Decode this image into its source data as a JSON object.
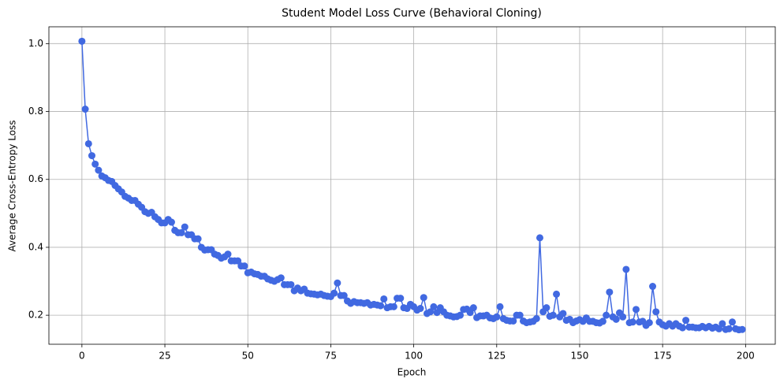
{
  "chart_data": {
    "type": "line",
    "title": "Student Model Loss Curve (Behavioral Cloning)",
    "xlabel": "Epoch",
    "ylabel": "Average Cross-Entropy Loss",
    "x": [
      0,
      1,
      2,
      3,
      4,
      5,
      6,
      7,
      8,
      9,
      10,
      11,
      12,
      13,
      14,
      15,
      16,
      17,
      18,
      19,
      20,
      21,
      22,
      23,
      24,
      25,
      26,
      27,
      28,
      29,
      30,
      31,
      32,
      33,
      34,
      35,
      36,
      37,
      38,
      39,
      40,
      41,
      42,
      43,
      44,
      45,
      46,
      47,
      48,
      49,
      50,
      51,
      52,
      53,
      54,
      55,
      56,
      57,
      58,
      59,
      60,
      61,
      62,
      63,
      64,
      65,
      66,
      67,
      68,
      69,
      70,
      71,
      72,
      73,
      74,
      75,
      76,
      77,
      78,
      79,
      80,
      81,
      82,
      83,
      84,
      85,
      86,
      87,
      88,
      89,
      90,
      91,
      92,
      93,
      94,
      95,
      96,
      97,
      98,
      99,
      100,
      101,
      102,
      103,
      104,
      105,
      106,
      107,
      108,
      109,
      110,
      111,
      112,
      113,
      114,
      115,
      116,
      117,
      118,
      119,
      120,
      121,
      122,
      123,
      124,
      125,
      126,
      127,
      128,
      129,
      130,
      131,
      132,
      133,
      134,
      135,
      136,
      137,
      138,
      139,
      140,
      141,
      142,
      143,
      144,
      145,
      146,
      147,
      148,
      149,
      150,
      151,
      152,
      153,
      154,
      155,
      156,
      157,
      158,
      159,
      160,
      161,
      162,
      163,
      164,
      165,
      166,
      167,
      168,
      169,
      170,
      171,
      172,
      173,
      174,
      175,
      176,
      177,
      178,
      179,
      180,
      181,
      182,
      183,
      184,
      185,
      186,
      187,
      188,
      189,
      190,
      191,
      192,
      193,
      194,
      195,
      196,
      197,
      198,
      199
    ],
    "series": [
      {
        "color": "#4169e1",
        "values": [
          1.007,
          0.807,
          0.705,
          0.67,
          0.645,
          0.627,
          0.61,
          0.605,
          0.597,
          0.594,
          0.582,
          0.572,
          0.563,
          0.55,
          0.545,
          0.538,
          0.538,
          0.527,
          0.518,
          0.505,
          0.5,
          0.503,
          0.49,
          0.482,
          0.472,
          0.472,
          0.482,
          0.474,
          0.45,
          0.443,
          0.443,
          0.46,
          0.437,
          0.437,
          0.425,
          0.425,
          0.4,
          0.392,
          0.393,
          0.393,
          0.38,
          0.376,
          0.368,
          0.372,
          0.38,
          0.36,
          0.36,
          0.36,
          0.345,
          0.345,
          0.325,
          0.327,
          0.322,
          0.32,
          0.315,
          0.315,
          0.307,
          0.303,
          0.3,
          0.305,
          0.31,
          0.29,
          0.29,
          0.29,
          0.272,
          0.28,
          0.272,
          0.277,
          0.265,
          0.263,
          0.262,
          0.26,
          0.262,
          0.258,
          0.256,
          0.255,
          0.265,
          0.295,
          0.258,
          0.258,
          0.242,
          0.235,
          0.24,
          0.237,
          0.237,
          0.235,
          0.237,
          0.23,
          0.232,
          0.23,
          0.228,
          0.248,
          0.222,
          0.225,
          0.225,
          0.25,
          0.25,
          0.222,
          0.22,
          0.232,
          0.225,
          0.215,
          0.22,
          0.252,
          0.205,
          0.21,
          0.225,
          0.208,
          0.222,
          0.21,
          0.2,
          0.198,
          0.195,
          0.196,
          0.2,
          0.217,
          0.218,
          0.208,
          0.222,
          0.193,
          0.198,
          0.198,
          0.2,
          0.192,
          0.19,
          0.195,
          0.225,
          0.19,
          0.185,
          0.183,
          0.183,
          0.2,
          0.2,
          0.183,
          0.178,
          0.18,
          0.182,
          0.19,
          0.428,
          0.21,
          0.222,
          0.197,
          0.2,
          0.262,
          0.195,
          0.205,
          0.185,
          0.188,
          0.178,
          0.183,
          0.187,
          0.182,
          0.192,
          0.182,
          0.182,
          0.178,
          0.177,
          0.182,
          0.2,
          0.268,
          0.195,
          0.188,
          0.207,
          0.195,
          0.335,
          0.178,
          0.18,
          0.217,
          0.18,
          0.182,
          0.17,
          0.178,
          0.285,
          0.21,
          0.18,
          0.172,
          0.168,
          0.175,
          0.168,
          0.175,
          0.168,
          0.163,
          0.185,
          0.165,
          0.165,
          0.163,
          0.163,
          0.167,
          0.163,
          0.167,
          0.162,
          0.165,
          0.16,
          0.175,
          0.158,
          0.16,
          0.18,
          0.16,
          0.157,
          0.158
        ]
      }
    ],
    "xlim": [
      -9.95,
      208.95
    ],
    "xticks": [
      0,
      25,
      50,
      75,
      100,
      125,
      150,
      175,
      200
    ],
    "ylim": [
      0.1145,
      1.0495
    ],
    "yticks": [
      0.2,
      0.4,
      0.6,
      0.8,
      {
        "value": 1,
        "label": "1.0"
      }
    ],
    "grid": true,
    "markers": true
  }
}
